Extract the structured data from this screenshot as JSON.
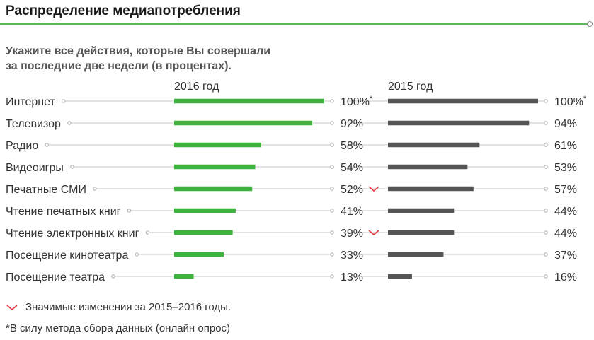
{
  "header": {
    "title": "Распределение медиапотребления",
    "subtitle_line1": "Укажите все действия, которые Вы совершали",
    "subtitle_line2": "за последние две недели (в процентах)."
  },
  "colors": {
    "green": "#3db33d",
    "gray": "#555555",
    "accent_red": "#e0323c",
    "leader": "#c8c8c8"
  },
  "chart_data": {
    "type": "bar",
    "orientation": "horizontal",
    "categories": [
      "Интернет",
      "Телевизор",
      "Радио",
      "Видеоигры",
      "Печатные СМИ",
      "Чтение печатных книг",
      "Чтение электронных книг",
      "Посещение кинотеатра",
      "Посещение театра"
    ],
    "series": [
      {
        "name": "2016 год",
        "values": [
          100,
          92,
          58,
          54,
          52,
          41,
          39,
          33,
          13
        ],
        "labels": [
          "100%*",
          "92%",
          "58%",
          "54%",
          "52%",
          "41%",
          "39%",
          "33%",
          "13%"
        ],
        "significant_change": [
          false,
          false,
          false,
          false,
          true,
          false,
          true,
          false,
          false
        ]
      },
      {
        "name": "2015 год",
        "values": [
          100,
          94,
          61,
          53,
          57,
          44,
          44,
          37,
          16
        ],
        "labels": [
          "100%*",
          "94%",
          "61%",
          "53%",
          "57%",
          "44%",
          "44%",
          "37%",
          "16%"
        ]
      }
    ],
    "xlim": [
      0,
      100
    ],
    "grid": false,
    "legend": "bottom-left"
  },
  "legend": {
    "significant_label": "Значимые изменения за 2015–2016 годы."
  },
  "footnote": "*В силу метода сбора данных (онлайн опрос)"
}
